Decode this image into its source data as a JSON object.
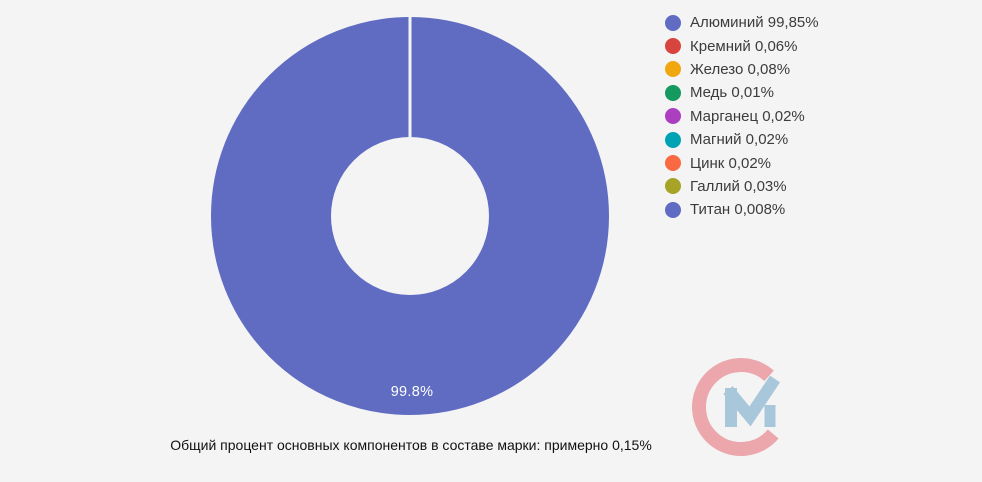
{
  "page": {
    "background_color": "#f4f4f5"
  },
  "chart_data": {
    "type": "pie",
    "subtype": "donut",
    "unit": "%",
    "categories": [
      "Алюминий",
      "Кремний",
      "Железо",
      "Медь",
      "Марганец",
      "Магний",
      "Цинк",
      "Галлий",
      "Титан"
    ],
    "values": [
      99.85,
      0.06,
      0.08,
      0.01,
      0.02,
      0.02,
      0.02,
      0.03,
      0.008
    ],
    "value_labels": [
      "99,85%",
      "0,06%",
      "0,08%",
      "0,01%",
      "0,02%",
      "0,02%",
      "0,02%",
      "0,03%",
      "0,008%"
    ],
    "colors": [
      "#5f6cc2",
      "#d8453e",
      "#f0a80e",
      "#14995e",
      "#ab3fc0",
      "#00a3b4",
      "#fa6a42",
      "#a6a327",
      "#606cc4"
    ],
    "slice_data_label": "99.8%",
    "legend_position": "right",
    "title": "",
    "caption": "Общий процент основных компонентов в составе марки: примерно 0,15%"
  },
  "legend": {
    "items": [
      {
        "label": "Алюминий",
        "value": "99,85%",
        "color": "#5f6cc2"
      },
      {
        "label": "Кремний",
        "value": "0,06%",
        "color": "#d8453e"
      },
      {
        "label": "Железо",
        "value": "0,08%",
        "color": "#f0a80e"
      },
      {
        "label": "Медь",
        "value": "0,01%",
        "color": "#14995e"
      },
      {
        "label": "Марганец",
        "value": "0,02%",
        "color": "#ab3fc0"
      },
      {
        "label": "Магний",
        "value": "0,02%",
        "color": "#00a3b4"
      },
      {
        "label": "Цинк",
        "value": "0,02%",
        "color": "#fa6a42"
      },
      {
        "label": "Галлий",
        "value": "0,03%",
        "color": "#a6a327"
      },
      {
        "label": "Титан",
        "value": "0,008%",
        "color": "#606cc4"
      }
    ]
  },
  "caption": {
    "text": "Общий процент основных компонентов в составе марки: примерно 0,15%"
  },
  "watermark": {
    "letters": "CM",
    "c_color": "#eba7ab",
    "m_color": "#a9c7db"
  }
}
